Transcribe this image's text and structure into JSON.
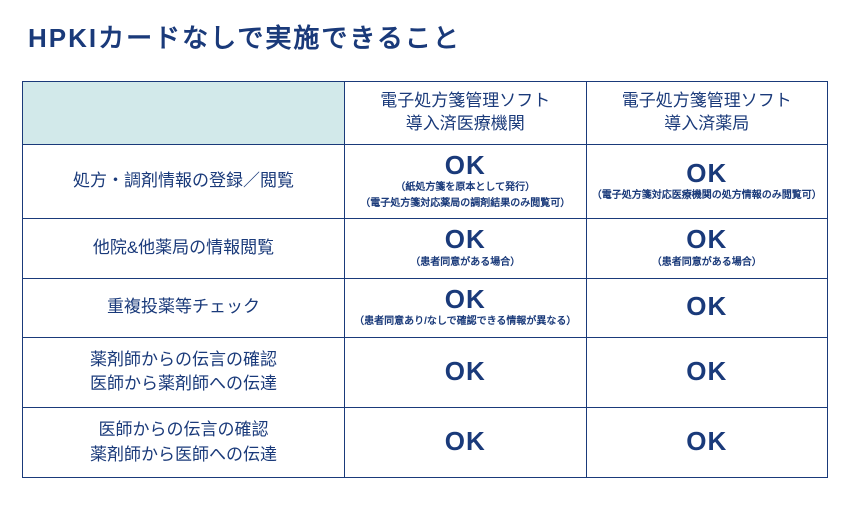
{
  "title": "HPKIカードなしで実施できること",
  "colors": {
    "text": "#1a3a7a",
    "border": "#1a3a7a",
    "header_corner_bg": "#d2e9ea",
    "page_bg": "#ffffff"
  },
  "table": {
    "columns": [
      {
        "label": "",
        "width_pct": 40
      },
      {
        "label": "電子処方箋管理ソフト\n導入済医療機関",
        "width_pct": 30
      },
      {
        "label": "電子処方箋管理ソフト\n導入済薬局",
        "width_pct": 30
      }
    ],
    "rows": [
      {
        "label": "処方・調剤情報の登録／閲覧",
        "cells": [
          {
            "status": "OK",
            "notes": [
              "（紙処方箋を原本として発行）",
              "（電子処方箋対応薬局の調剤結果のみ閲覧可）"
            ]
          },
          {
            "status": "OK",
            "notes": [
              "（電子処方箋対応医療機関の処方情報のみ閲覧可）"
            ]
          }
        ]
      },
      {
        "label": "他院&他薬局の情報閲覧",
        "cells": [
          {
            "status": "OK",
            "notes": [
              "（患者同意がある場合）"
            ]
          },
          {
            "status": "OK",
            "notes": [
              "（患者同意がある場合）"
            ]
          }
        ]
      },
      {
        "label": "重複投薬等チェック",
        "cells": [
          {
            "status": "OK",
            "notes": [
              "（患者同意あり/なしで確認できる情報が異なる）"
            ]
          },
          {
            "status": "OK",
            "notes": []
          }
        ]
      },
      {
        "label": "薬剤師からの伝言の確認\n医師から薬剤師への伝達",
        "cells": [
          {
            "status": "OK",
            "notes": []
          },
          {
            "status": "OK",
            "notes": []
          }
        ]
      },
      {
        "label": "医師からの伝言の確認\n薬剤師から医師への伝達",
        "cells": [
          {
            "status": "OK",
            "notes": []
          },
          {
            "status": "OK",
            "notes": []
          }
        ]
      }
    ]
  }
}
